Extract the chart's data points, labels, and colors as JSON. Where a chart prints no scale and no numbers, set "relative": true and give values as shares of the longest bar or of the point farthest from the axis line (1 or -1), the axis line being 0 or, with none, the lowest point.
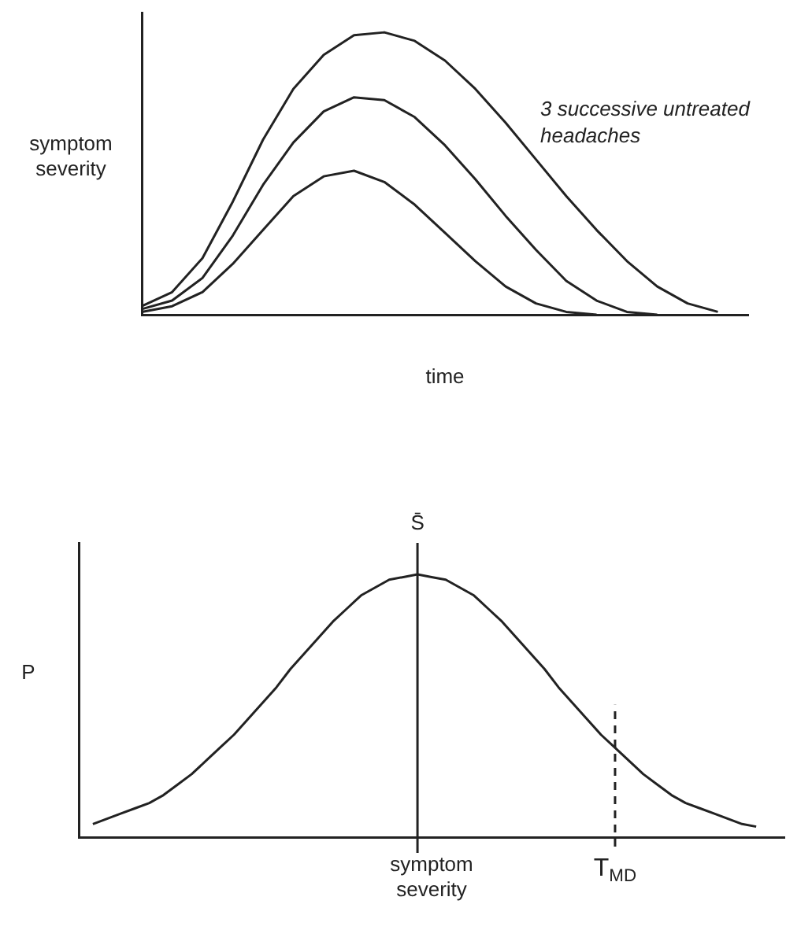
{
  "chart_data": [
    {
      "type": "line",
      "relative": true,
      "ylabel": "symptom severity",
      "xlabel": "time",
      "legend": false,
      "grid": false,
      "tick_labels": false,
      "annotations": [
        "3 successive untreated headaches"
      ],
      "categories": [
        null,
        null,
        null,
        null,
        null,
        null,
        null,
        null,
        null,
        null,
        null,
        null,
        null,
        null,
        null,
        null,
        null,
        null,
        null,
        null,
        null
      ],
      "series": [
        {
          "color": "#222222",
          "values": [
            0.03,
            0.08,
            0.2,
            0.4,
            0.62,
            0.8,
            0.92,
            0.99,
            1.0,
            0.97,
            0.9,
            0.8,
            0.68,
            0.55,
            0.42,
            0.3,
            0.19,
            0.1,
            0.04,
            0.01,
            null
          ]
        },
        {
          "color": "#222222",
          "values": [
            0.02,
            0.05,
            0.13,
            0.28,
            0.46,
            0.61,
            0.72,
            0.77,
            0.76,
            0.7,
            0.6,
            0.48,
            0.35,
            0.23,
            0.12,
            0.05,
            0.01,
            0,
            null,
            null,
            null
          ]
        },
        {
          "color": "#222222",
          "values": [
            0.01,
            0.03,
            0.08,
            0.18,
            0.3,
            0.42,
            0.49,
            0.51,
            0.47,
            0.39,
            0.29,
            0.19,
            0.1,
            0.04,
            0.01,
            0,
            null,
            null,
            null,
            null,
            null
          ]
        }
      ]
    },
    {
      "type": "line",
      "relative": true,
      "ylabel": "P",
      "xlabel": "symptom severity",
      "legend": false,
      "grid": false,
      "tick_labels": false,
      "categories": [
        null,
        null,
        null,
        null,
        null,
        null,
        null,
        null,
        null,
        null,
        null,
        null,
        null,
        null,
        null,
        null,
        null,
        null,
        null,
        null,
        null,
        null,
        null,
        null,
        "S̄",
        null,
        null,
        null,
        null,
        null,
        null,
        null,
        null,
        null,
        null,
        null,
        null,
        null,
        "T$_{MD}$",
        null,
        null,
        null,
        null,
        null,
        null,
        null,
        null,
        null,
        null,
        null,
        null
      ],
      "series": [
        {
          "color": "#222222",
          "values": [
            null,
            0.05,
            0.07,
            0.09,
            0.11,
            0.13,
            0.16,
            0.2,
            0.24,
            0.29,
            0.34,
            0.39,
            0.45,
            0.51,
            0.57,
            0.64,
            0.7,
            0.76,
            0.82,
            0.87,
            0.92,
            0.95,
            0.98,
            0.99,
            1.0,
            0.99,
            0.98,
            0.95,
            0.92,
            0.87,
            0.82,
            0.76,
            0.7,
            0.64,
            0.57,
            0.51,
            0.45,
            0.39,
            0.34,
            0.29,
            0.24,
            0.2,
            0.16,
            0.13,
            0.11,
            0.09,
            0.07,
            0.05,
            0.04,
            null,
            null
          ]
        }
      ],
      "ref_lines": [
        {
          "axis": "x",
          "value": "S̄",
          "color": "#222222",
          "line_style": "solid"
        },
        {
          "axis": "x",
          "value": "T$_{MD}$",
          "color": "#222222",
          "line_style": "dashed"
        }
      ]
    }
  ]
}
